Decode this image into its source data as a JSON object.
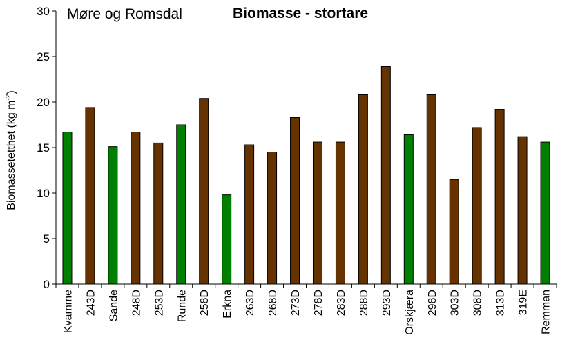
{
  "chart_data": {
    "type": "bar",
    "title": "Biomasse - stortare",
    "subtitle": "Møre og Romsdal",
    "xlabel": "",
    "ylabel": "Biomassetetthet  (kg m",
    "ylabel_sup": "-2",
    "ylabel_end": ")",
    "ylim": [
      0,
      30
    ],
    "yticks": [
      0,
      5,
      10,
      15,
      20,
      25,
      30
    ],
    "grid": false,
    "categories": [
      "Kvamme",
      "243D",
      "Sande",
      "248D",
      "253D",
      "Runde",
      "258D",
      "Erkna",
      "263D",
      "268D",
      "273D",
      "278D",
      "283D",
      "288D",
      "293D",
      "Orskjæra",
      "298D",
      "303D",
      "308D",
      "313D",
      "319E",
      "Remman"
    ],
    "values": [
      16.7,
      19.4,
      15.1,
      16.7,
      15.5,
      17.5,
      20.4,
      9.8,
      15.3,
      14.5,
      18.3,
      15.6,
      15.6,
      20.8,
      23.9,
      16.4,
      20.8,
      11.5,
      17.2,
      19.2,
      16.2,
      15.6
    ],
    "bar_colors": [
      "#008000",
      "#663300",
      "#008000",
      "#663300",
      "#663300",
      "#008000",
      "#663300",
      "#008000",
      "#663300",
      "#663300",
      "#663300",
      "#663300",
      "#663300",
      "#663300",
      "#663300",
      "#008000",
      "#663300",
      "#663300",
      "#663300",
      "#663300",
      "#663300",
      "#008000"
    ]
  }
}
